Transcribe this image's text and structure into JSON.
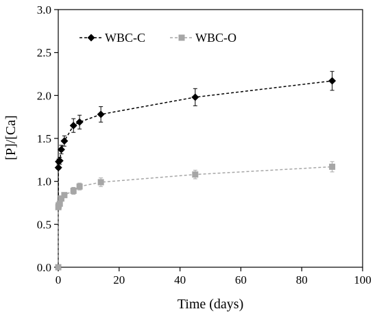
{
  "chart_data": {
    "type": "scatter",
    "xlabel": "Time (days)",
    "ylabel": "[P]/[Ca]",
    "xlim": [
      0,
      100
    ],
    "ylim": [
      0,
      3.0
    ],
    "xticks": [
      0,
      20,
      40,
      60,
      80,
      100
    ],
    "yticks": [
      0.0,
      0.5,
      1.0,
      1.5,
      2.0,
      2.5,
      3.0
    ],
    "xtick_labels": [
      "0",
      "20",
      "40",
      "60",
      "80",
      "100"
    ],
    "ytick_labels": [
      "0.0",
      "0.5",
      "1.0",
      "1.5",
      "2.0",
      "2.5",
      "3.0"
    ],
    "grid": false,
    "legend_position": "top-left",
    "series": [
      {
        "name": "WBC-C",
        "color": "#000000",
        "marker": "diamond",
        "line_style": "dashed",
        "x": [
          0,
          0.04,
          0.125,
          0.5,
          1,
          2,
          5,
          7,
          14,
          45,
          90
        ],
        "y": [
          0.0,
          1.16,
          1.23,
          1.24,
          1.37,
          1.47,
          1.65,
          1.69,
          1.78,
          1.98,
          2.17
        ],
        "error": [
          0,
          0.02,
          0.03,
          0.04,
          0.05,
          0.06,
          0.08,
          0.08,
          0.09,
          0.1,
          0.11
        ]
      },
      {
        "name": "WBC-O",
        "color": "#a6a6a6",
        "marker": "square",
        "line_style": "dashed",
        "x": [
          0,
          0.04,
          0.125,
          0.5,
          1,
          2,
          5,
          7,
          14,
          45,
          90
        ],
        "y": [
          0.0,
          0.7,
          0.72,
          0.74,
          0.8,
          0.84,
          0.89,
          0.94,
          0.99,
          1.08,
          1.17
        ],
        "error": [
          0,
          0.02,
          0.02,
          0.03,
          0.03,
          0.03,
          0.04,
          0.04,
          0.05,
          0.05,
          0.06
        ]
      }
    ]
  }
}
